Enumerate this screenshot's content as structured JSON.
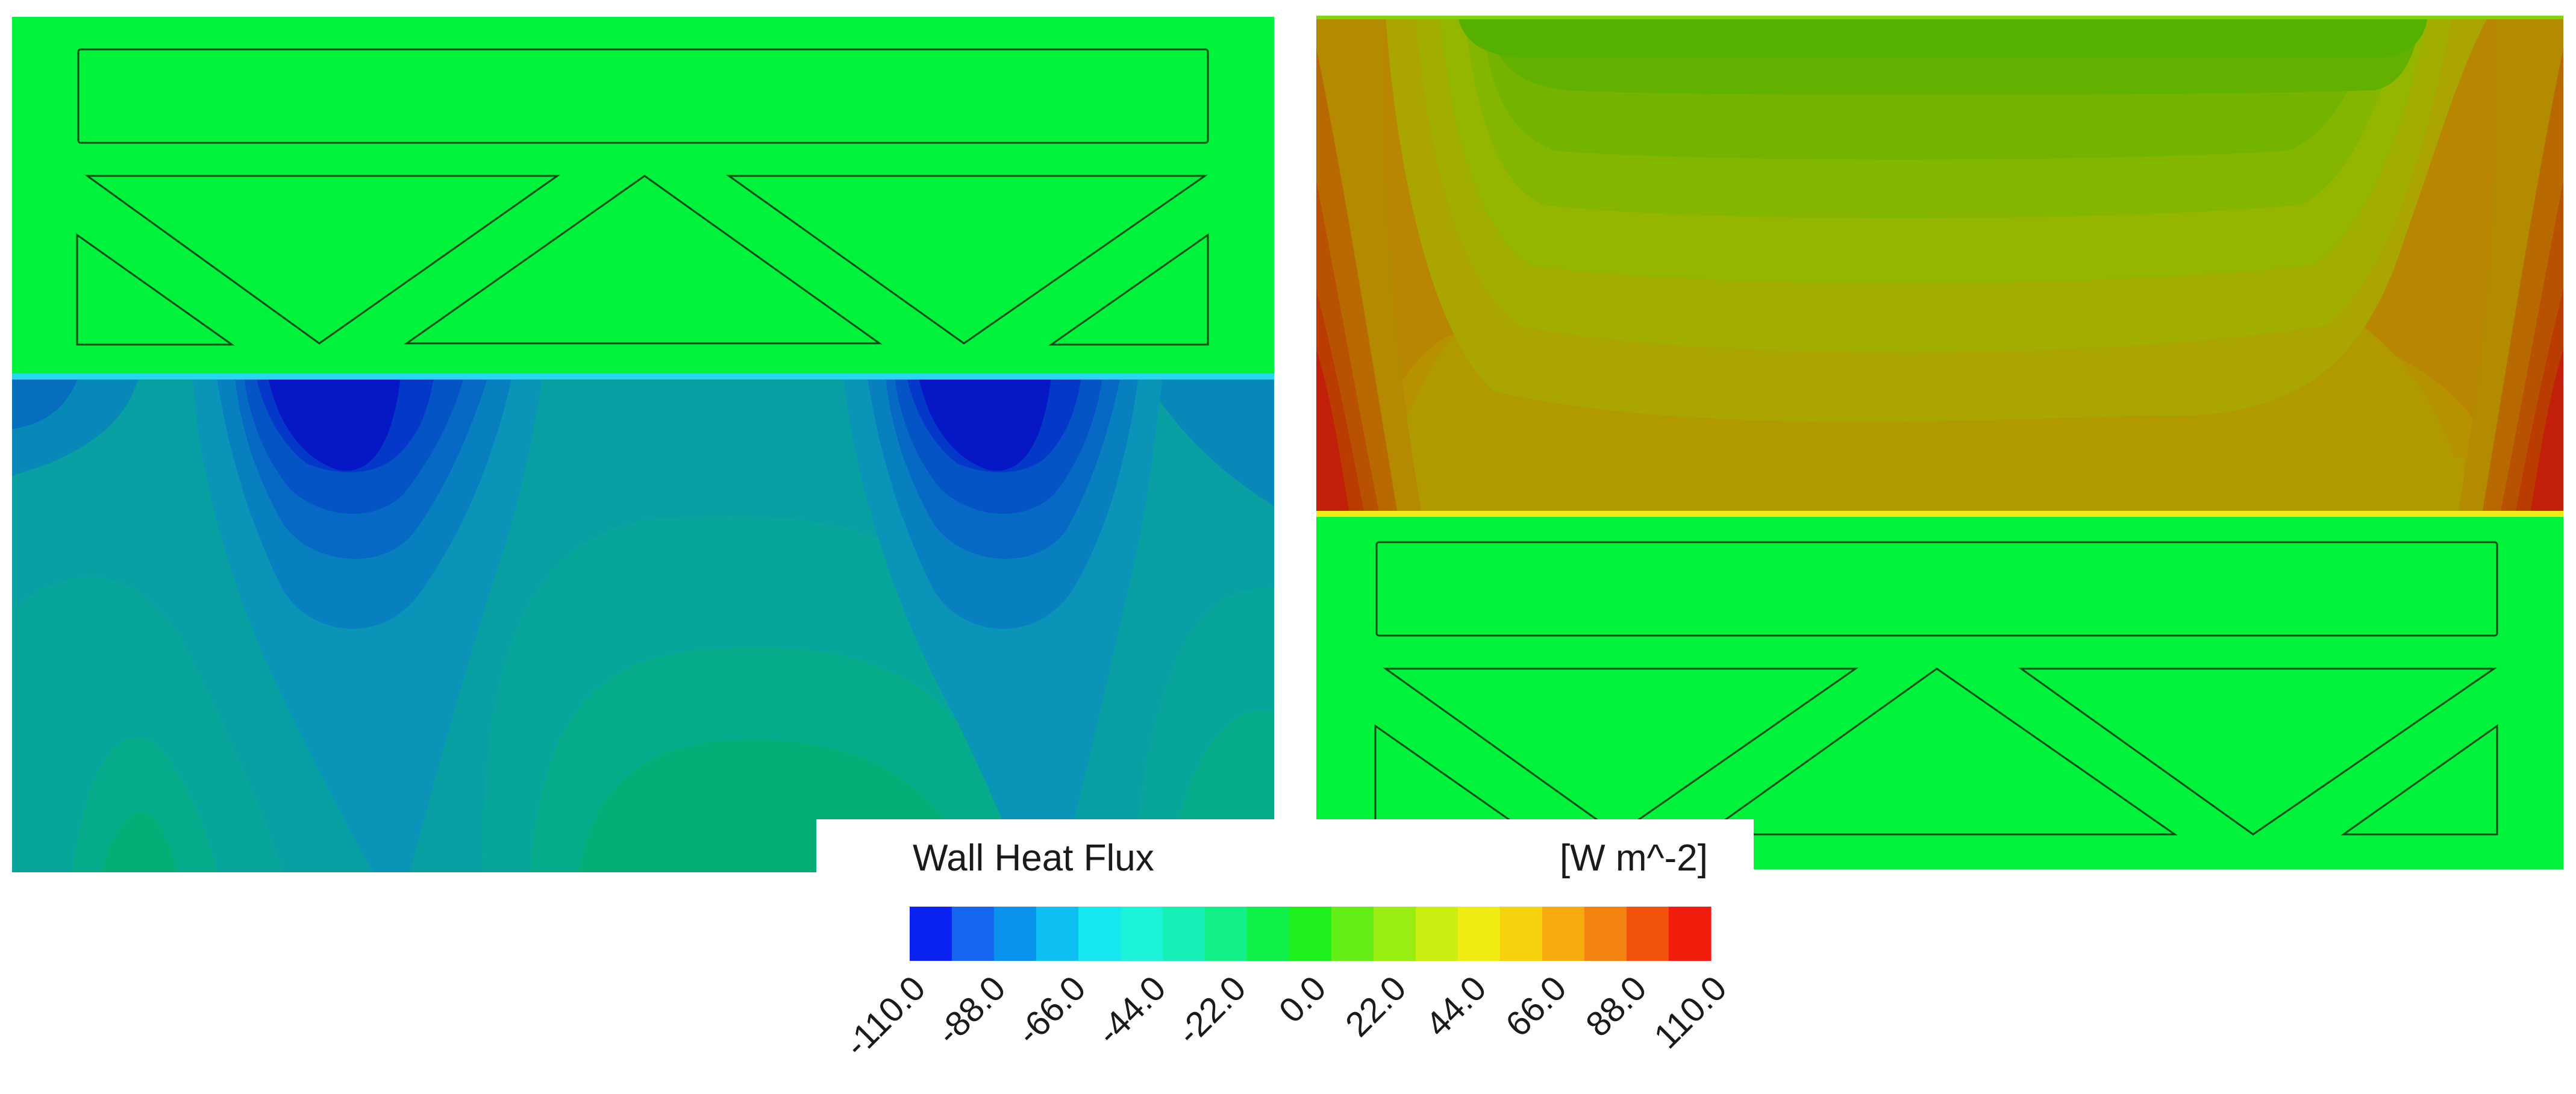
{
  "legend": {
    "title": "Wall Heat Flux",
    "unit": "[W m^-2]",
    "ticks": [
      "-110.0",
      "-88.0",
      "-66.0",
      "-44.0",
      "-22.0",
      "0.0",
      "22.0",
      "44.0",
      "66.0",
      "88.0",
      "110.0"
    ],
    "colors": [
      "#0a23f2",
      "#1666ef",
      "#0a93ec",
      "#0cbef2",
      "#14e6f2",
      "#1af2da",
      "#16efb6",
      "#12ef88",
      "#0ef048",
      "#1ef01e",
      "#62ee16",
      "#98ee12",
      "#caee12",
      "#eeec10",
      "#f6d20e",
      "#f6aa0e",
      "#f4820e",
      "#f2520c",
      "#f21c0c"
    ]
  },
  "panels": {
    "left": {
      "top_level_color": "#00f23a",
      "bottom_min_color": "#0618c6",
      "bottom_base_color": "#08a79e"
    },
    "right": {
      "top_max_color": "#c2200a",
      "top_base_color": "#9dbe00",
      "bottom_level_color": "#00f23a"
    }
  }
}
